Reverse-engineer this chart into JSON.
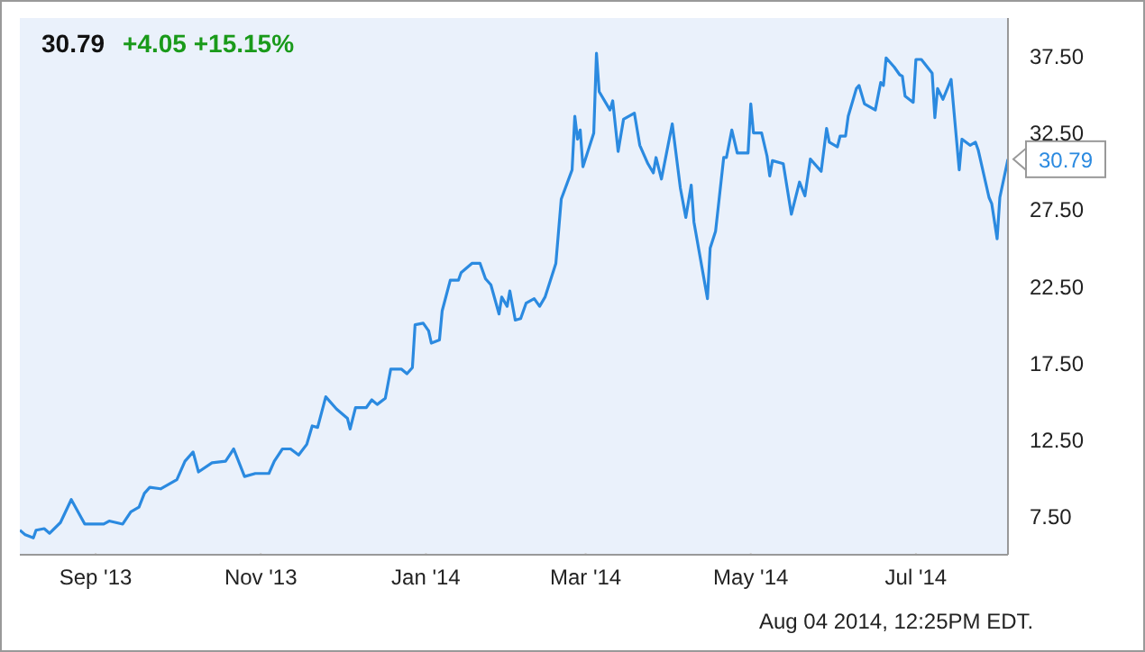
{
  "chart_data": {
    "type": "line",
    "title": "30.79",
    "subtitle": "+4.05  +15.15%",
    "annotations": [
      {
        "text": "30.79",
        "x": "2014-08-04",
        "y": 30.79
      },
      "Aug 04 2014, 12:25PM EDT."
    ],
    "x": [
      "2013-08-04",
      "2013-08-06",
      "2013-08-09",
      "2013-08-10",
      "2013-08-13",
      "2013-08-15",
      "2013-08-19",
      "2013-08-23",
      "2013-08-28",
      "2013-09-04",
      "2013-09-06",
      "2013-09-11",
      "2013-09-14",
      "2013-09-17",
      "2013-09-19",
      "2013-09-21",
      "2013-09-25",
      "2013-10-01",
      "2013-10-04",
      "2013-10-07",
      "2013-10-09",
      "2013-10-14",
      "2013-10-19",
      "2013-10-22",
      "2013-10-26",
      "2013-10-30",
      "2013-11-04",
      "2013-11-06",
      "2013-11-09",
      "2013-11-12",
      "2013-11-15",
      "2013-11-18",
      "2013-11-20",
      "2013-11-22",
      "2013-11-25",
      "2013-11-29",
      "2013-12-03",
      "2013-12-04",
      "2013-12-06",
      "2013-12-10",
      "2013-12-12",
      "2013-12-14",
      "2013-12-17",
      "2013-12-19",
      "2013-12-23",
      "2013-12-25",
      "2013-12-27",
      "2013-12-28",
      "2013-12-31",
      "2014-01-02",
      "2014-01-03",
      "2014-01-06",
      "2014-01-07",
      "2014-01-10",
      "2014-01-13",
      "2014-01-14",
      "2014-01-18",
      "2014-01-21",
      "2014-01-23",
      "2014-01-25",
      "2014-01-28",
      "2014-01-29",
      "2014-01-31",
      "2014-02-01",
      "2014-02-03",
      "2014-02-05",
      "2014-02-07",
      "2014-02-10",
      "2014-02-12",
      "2014-02-14",
      "2014-02-18",
      "2014-02-20",
      "2014-02-24",
      "2014-02-25",
      "2014-02-26",
      "2014-02-27",
      "2014-02-28",
      "2014-03-04",
      "2014-03-05",
      "2014-03-06",
      "2014-03-10",
      "2014-03-11",
      "2014-03-13",
      "2014-03-15",
      "2014-03-19",
      "2014-03-21",
      "2014-03-24",
      "2014-03-26",
      "2014-03-27",
      "2014-03-29",
      "2014-03-31",
      "2014-04-02",
      "2014-04-05",
      "2014-04-07",
      "2014-04-09",
      "2014-04-10",
      "2014-04-15",
      "2014-04-16",
      "2014-04-18",
      "2014-04-21",
      "2014-04-22",
      "2014-04-24",
      "2014-04-26",
      "2014-04-30",
      "2014-05-01",
      "2014-05-02",
      "2014-05-05",
      "2014-05-07",
      "2014-05-08",
      "2014-05-09",
      "2014-05-13",
      "2014-05-16",
      "2014-05-19",
      "2014-05-21",
      "2014-05-23",
      "2014-05-27",
      "2014-05-29",
      "2014-05-30",
      "2014-06-02",
      "2014-06-03",
      "2014-06-05",
      "2014-06-06",
      "2014-06-09",
      "2014-06-10",
      "2014-06-12",
      "2014-06-16",
      "2014-06-18",
      "2014-06-19",
      "2014-06-20",
      "2014-06-23",
      "2014-06-25",
      "2014-06-26",
      "2014-06-27",
      "2014-06-30",
      "2014-07-01",
      "2014-07-03",
      "2014-07-07",
      "2014-07-08",
      "2014-07-09",
      "2014-07-11",
      "2014-07-14",
      "2014-07-17",
      "2014-07-18",
      "2014-07-21",
      "2014-07-23",
      "2014-07-24",
      "2014-07-28",
      "2014-07-29",
      "2014-07-31",
      "2014-08-01",
      "2014-08-04"
    ],
    "series": [
      {
        "color": "#2b8ae0",
        "values": [
          6.6,
          6.3,
          6.1,
          6.6,
          6.7,
          6.4,
          7.1,
          8.6,
          7.0,
          7.0,
          7.2,
          7.0,
          7.8,
          8.1,
          9.0,
          9.4,
          9.3,
          9.9,
          11.1,
          11.7,
          10.4,
          11.0,
          11.1,
          11.9,
          10.1,
          10.3,
          10.3,
          11.1,
          11.9,
          11.9,
          11.5,
          12.2,
          13.4,
          13.3,
          15.3,
          14.5,
          13.9,
          13.2,
          14.6,
          14.6,
          15.1,
          14.8,
          15.2,
          17.1,
          17.1,
          16.8,
          17.2,
          20.0,
          20.1,
          19.6,
          18.8,
          19.0,
          20.9,
          22.9,
          22.9,
          23.4,
          24.0,
          24.0,
          23.0,
          22.6,
          20.7,
          21.8,
          21.2,
          22.2,
          20.3,
          20.4,
          21.4,
          21.7,
          21.2,
          21.8,
          24.0,
          28.2,
          30.1,
          33.6,
          32.1,
          32.7,
          30.3,
          32.5,
          37.7,
          35.2,
          34.0,
          34.6,
          31.3,
          33.4,
          33.8,
          31.7,
          30.5,
          29.9,
          30.9,
          29.5,
          31.3,
          33.1,
          28.9,
          27.0,
          29.1,
          26.7,
          21.7,
          25.0,
          26.1,
          30.9,
          30.9,
          32.7,
          31.2,
          31.2,
          34.4,
          32.5,
          32.5,
          31.0,
          29.7,
          30.7,
          30.5,
          27.2,
          29.3,
          28.4,
          30.8,
          30.0,
          32.8,
          31.9,
          31.6,
          32.3,
          32.3,
          33.6,
          35.4,
          35.6,
          34.4,
          34.0,
          35.8,
          35.6,
          37.4,
          36.8,
          36.3,
          36.2,
          34.9,
          34.5,
          37.3,
          37.3,
          36.4,
          33.5,
          35.4,
          34.7,
          36.0,
          30.1,
          32.1,
          31.7,
          31.9,
          31.4,
          28.3,
          27.9,
          25.6,
          28.3,
          30.79
        ]
      }
    ],
    "xlim": [
      "2013-08-04",
      "2014-08-04"
    ],
    "xticks": [
      {
        "value": "2013-09-01",
        "label": "Sep '13"
      },
      {
        "value": "2013-11-01",
        "label": "Nov '13"
      },
      {
        "value": "2014-01-01",
        "label": "Jan '14"
      },
      {
        "value": "2014-03-01",
        "label": "Mar '14"
      },
      {
        "value": "2014-05-01",
        "label": "May '14"
      },
      {
        "value": "2014-07-01",
        "label": "Jul '14"
      }
    ],
    "ylim": [
      5,
      40
    ],
    "yticks": [
      {
        "value": 7.5,
        "label": "7.50"
      },
      {
        "value": 12.5,
        "label": "12.50"
      },
      {
        "value": 17.5,
        "label": "17.50"
      },
      {
        "value": 22.5,
        "label": "22.50"
      },
      {
        "value": 27.5,
        "label": "27.50"
      },
      {
        "value": 32.5,
        "label": "32.50"
      },
      {
        "value": 37.5,
        "label": "37.50"
      }
    ],
    "grid": true,
    "legend": false,
    "marker": "none",
    "line_style": "solid"
  }
}
